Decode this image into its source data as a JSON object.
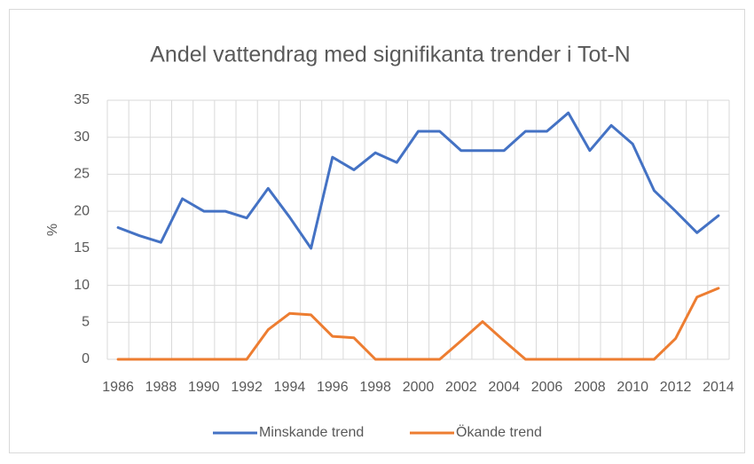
{
  "chart_data": {
    "type": "line",
    "title": "Andel vattendrag med signifikanta trender i Tot-N",
    "y_label": "%",
    "categories": [
      "1986",
      null,
      "1988",
      null,
      "1990",
      null,
      "1992",
      null,
      "1994",
      null,
      "1996",
      null,
      "1998",
      null,
      "2000",
      null,
      "2002",
      null,
      "2004",
      null,
      "2006",
      null,
      "2008",
      null,
      "2010",
      null,
      "2012",
      null,
      "2014"
    ],
    "series": [
      {
        "name": "Minskande trend",
        "color": "#4472c4",
        "values": [
          17.8,
          16.7,
          15.8,
          21.7,
          20,
          20,
          19.1,
          23.1,
          19.2,
          15.0,
          27.3,
          25.6,
          27.9,
          26.6,
          30.8,
          30.8,
          28.2,
          28.2,
          28.2,
          30.8,
          30.8,
          33.3,
          28.2,
          31.6,
          29.1,
          22.8,
          20,
          17.1,
          19.4
        ]
      },
      {
        "name": "Ökande trend",
        "color": "#ed7d31",
        "values": [
          0,
          0,
          0,
          0,
          0,
          0,
          0,
          4.0,
          6.2,
          6.0,
          3.1,
          2.9,
          0,
          0,
          0,
          0,
          2.5,
          5.1,
          2.5,
          0,
          0,
          0,
          0,
          0,
          0,
          0,
          2.8,
          8.4,
          9.6
        ]
      }
    ],
    "ylim": [
      0,
      35
    ],
    "yticks": [
      0,
      5,
      10,
      15,
      20,
      25,
      30,
      35
    ],
    "grid": true,
    "legend": "bottom"
  }
}
